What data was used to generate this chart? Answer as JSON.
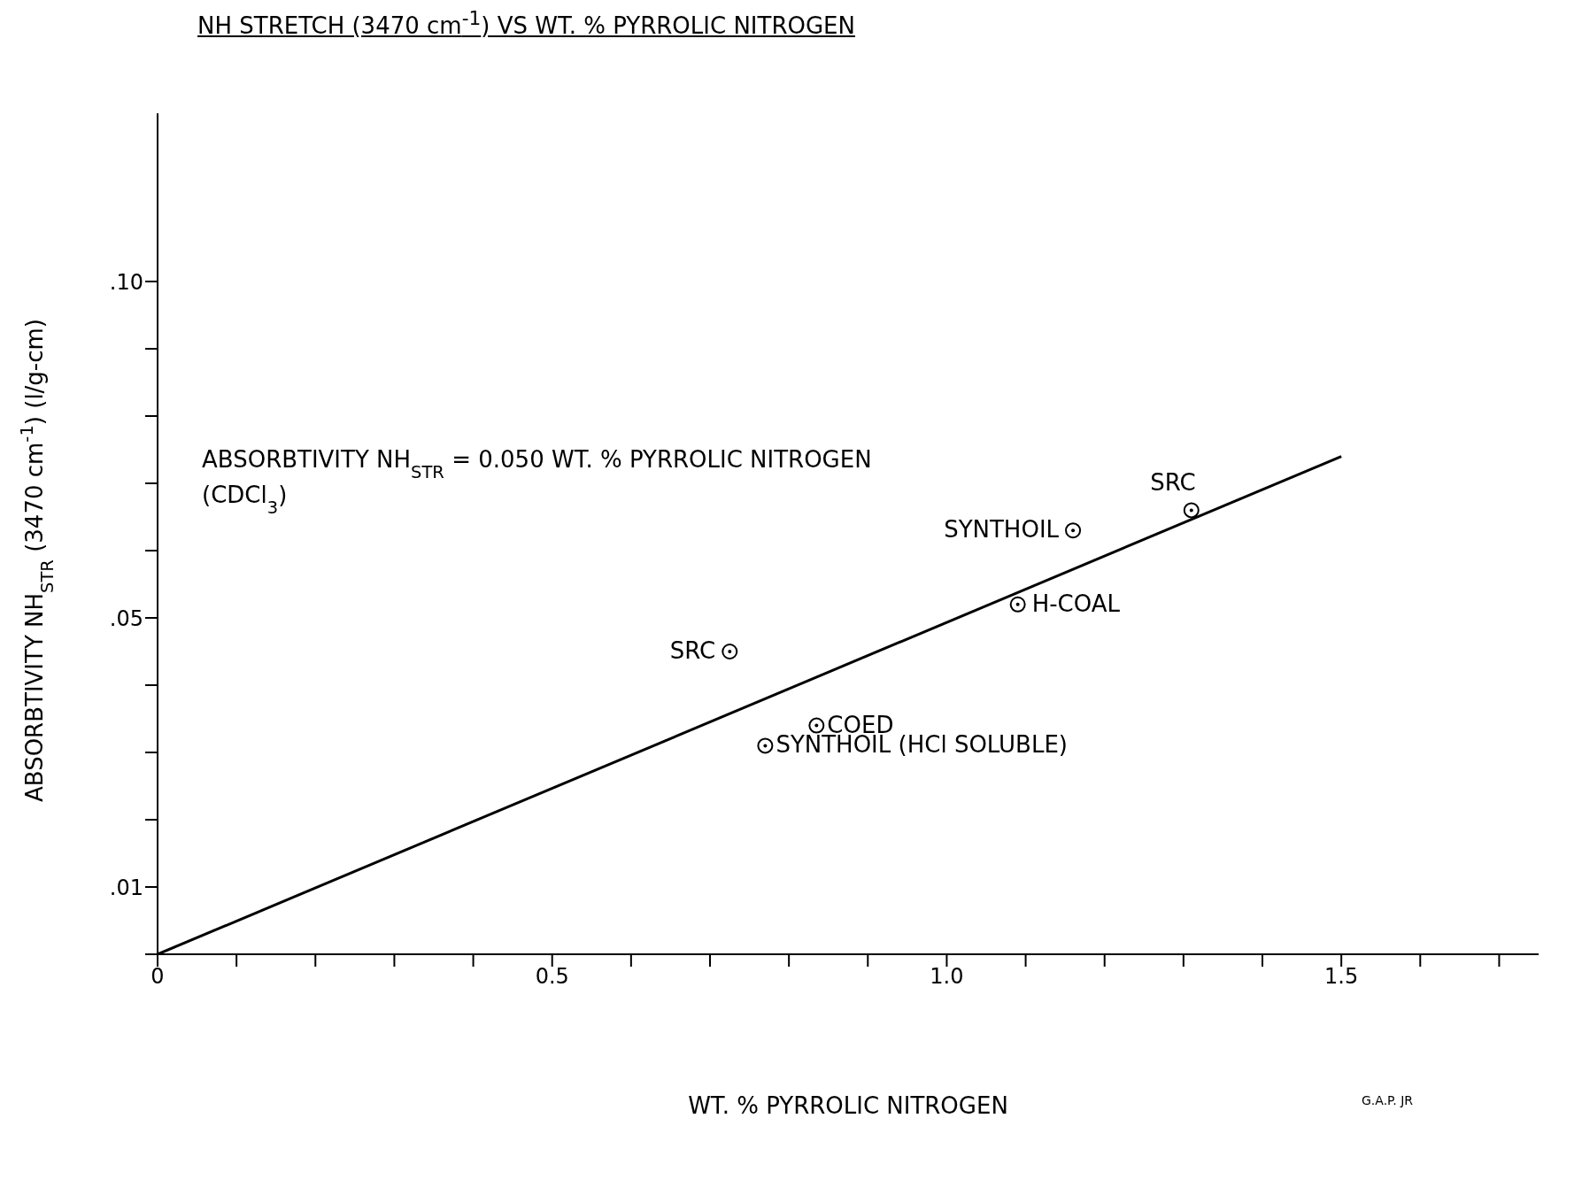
{
  "chart_data": {
    "type": "scatter",
    "title": "NH STRETCH (3470 cm$^{-1}$) VS WT. % PYRROLIC NITROGEN",
    "xlabel": "WT. % PYRROLIC NITROGEN",
    "ylabel": "ABSORBTIVITY NH$_{STR}$ (3470 cm$^{-1}$) (l/g-cm)",
    "xlim": [
      0,
      1.75
    ],
    "xticks": [
      0,
      {
        "value": 0.1,
        "label": null
      },
      {
        "value": 0.2,
        "label": null
      },
      {
        "value": 0.3,
        "label": null
      },
      {
        "value": 0.4,
        "label": null
      },
      0.5,
      {
        "value": 0.6,
        "label": null
      },
      {
        "value": 0.7,
        "label": null
      },
      {
        "value": 0.8,
        "label": null
      },
      {
        "value": 0.9,
        "label": null
      },
      {
        "value": 1.0,
        "label": "1.0"
      },
      {
        "value": 1.1,
        "label": null
      },
      {
        "value": 1.2,
        "label": null
      },
      {
        "value": 1.3,
        "label": null
      },
      {
        "value": 1.4,
        "label": null
      },
      1.5,
      {
        "value": 1.6,
        "label": null
      },
      {
        "value": 1.7,
        "label": null
      }
    ],
    "ylim": [
      0,
      0.125
    ],
    "yticks": [
      {
        "value": 0,
        "label": null
      },
      {
        "value": 0.01,
        "label": ".01"
      },
      {
        "value": 0.02,
        "label": null
      },
      {
        "value": 0.03,
        "label": null
      },
      {
        "value": 0.04,
        "label": null
      },
      {
        "value": 0.05,
        "label": ".05"
      },
      {
        "value": 0.06,
        "label": null
      },
      {
        "value": 0.07,
        "label": null
      },
      {
        "value": 0.08,
        "label": null
      },
      {
        "value": 0.09,
        "label": null
      },
      {
        "value": 0.1,
        "label": ".10"
      }
    ],
    "series": [
      {
        "marker": "circle",
        "color": "#000000",
        "x": [
          1.31,
          1.16,
          1.09,
          0.725,
          0.835,
          0.77
        ],
        "values": [
          0.066,
          0.063,
          0.052,
          0.045,
          0.034,
          0.031
        ]
      },
      {
        "type": "line",
        "color": "#000000",
        "x": [
          0,
          1.5
        ],
        "values": [
          0,
          0.074
        ]
      }
    ],
    "annotations": [
      {
        "text": "SRC",
        "x": 1.31,
        "y": 0.066
      },
      {
        "text": "SYNTHOIL",
        "x": 1.16,
        "y": 0.063
      },
      {
        "text": "H-COAL",
        "x": 1.09,
        "y": 0.052
      },
      {
        "text": "SRC",
        "x": 0.725,
        "y": 0.045
      },
      {
        "text": "COED",
        "x": 0.835,
        "y": 0.034
      },
      {
        "text": "SYNTHOIL (HCl SOLUBLE)",
        "x": 0.77,
        "y": 0.031
      },
      "ABSORBTIVITY NH$_{STR}$ = 0.050 WT. % PYRROLIC NITROGEN",
      "(CDCl$_{3}$)",
      "G.A.P. JR"
    ]
  }
}
